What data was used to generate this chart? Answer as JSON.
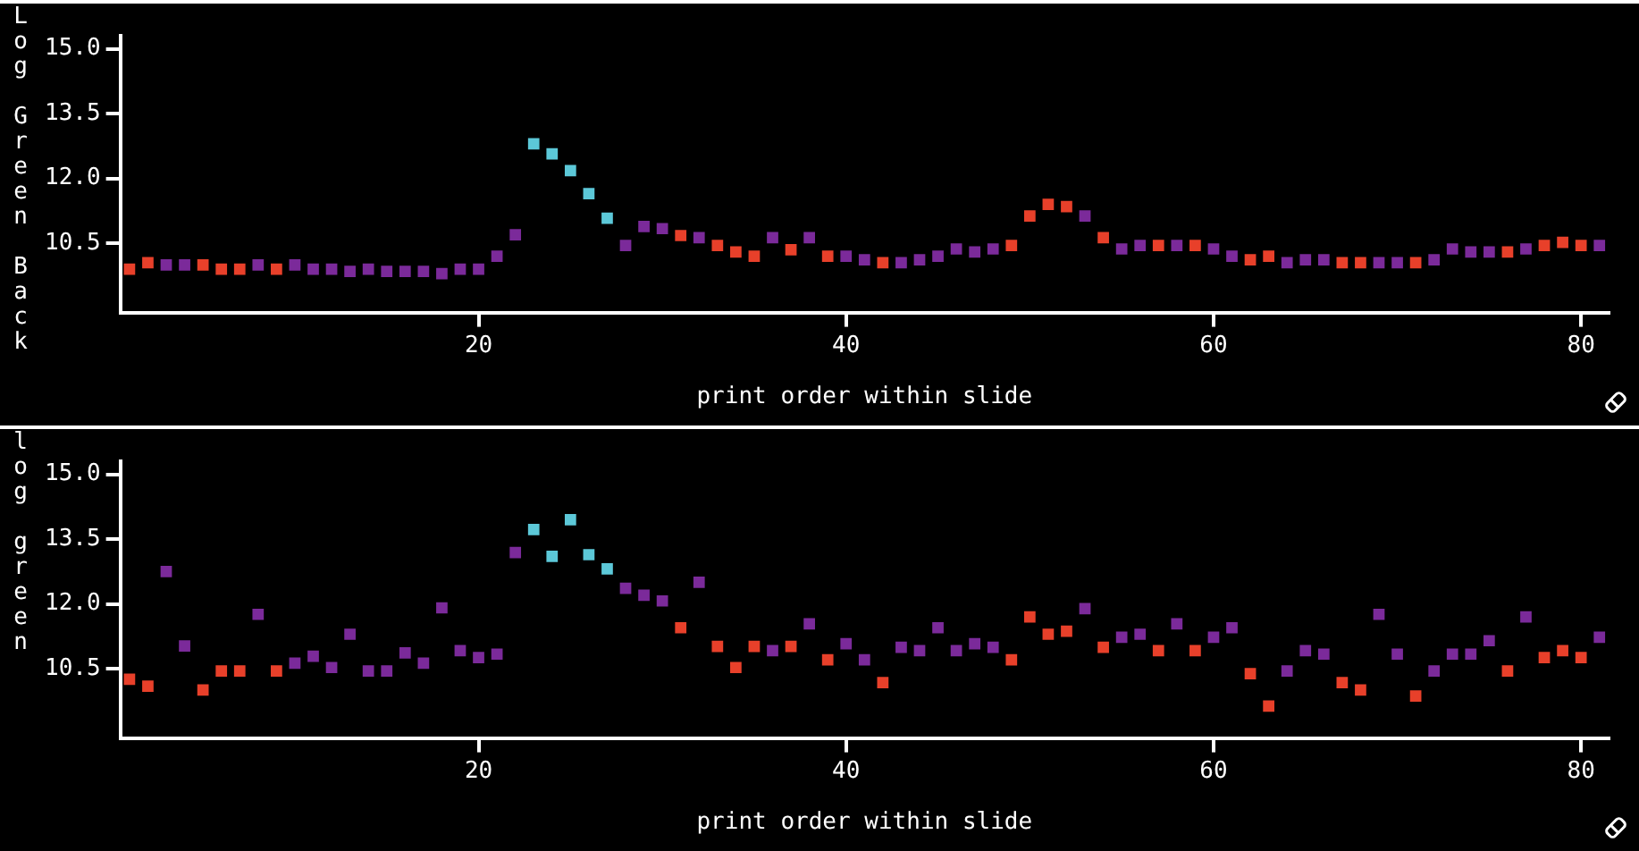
{
  "chart_data": [
    {
      "type": "scatter",
      "xlabel": "print order within slide",
      "ylabel": "Log Green Back",
      "xlim": [
        0.5,
        81.5
      ],
      "ylim": [
        8.9,
        15.3
      ],
      "xticks": [
        20,
        40,
        60,
        80
      ],
      "yticks": [
        {
          "value": 10.5,
          "label": "10.5"
        },
        {
          "value": 12,
          "label": "12.0"
        },
        {
          "value": 13.5,
          "label": "13.5"
        },
        {
          "value": 15,
          "label": "15.0"
        }
      ],
      "marker": "square",
      "grid": false,
      "legend": false,
      "series": [
        {
          "color": "#e8402a",
          "x": [
            1,
            2,
            5,
            6,
            7,
            9,
            31,
            33,
            34,
            35,
            37,
            39,
            42,
            49,
            50,
            51,
            52,
            54,
            57,
            59,
            62,
            63,
            67,
            68,
            71,
            76,
            78,
            79,
            80
          ],
          "values": [
            9.9,
            10.05,
            10.0,
            9.9,
            9.9,
            9.9,
            10.68,
            10.45,
            10.3,
            10.2,
            10.35,
            10.2,
            10.05,
            10.45,
            11.13,
            11.4,
            11.35,
            10.63,
            10.45,
            10.45,
            10.12,
            10.2,
            10.05,
            10.05,
            10.05,
            10.3,
            10.45,
            10.52,
            10.45
          ]
        },
        {
          "color": "#7b2a9a",
          "x": [
            3,
            4,
            8,
            10,
            11,
            12,
            13,
            14,
            15,
            16,
            17,
            18,
            19,
            20,
            21,
            22,
            28,
            29,
            30,
            32,
            36,
            38,
            40,
            41,
            43,
            44,
            45,
            46,
            47,
            48,
            53,
            55,
            56,
            58,
            60,
            61,
            64,
            65,
            66,
            69,
            70,
            72,
            73,
            74,
            75,
            77,
            81
          ],
          "values": [
            10.0,
            10.0,
            10.0,
            10.0,
            9.9,
            9.9,
            9.85,
            9.9,
            9.85,
            9.85,
            9.85,
            9.8,
            9.9,
            9.9,
            10.2,
            10.7,
            10.45,
            10.89,
            10.84,
            10.63,
            10.63,
            10.63,
            10.2,
            10.12,
            10.05,
            10.12,
            10.2,
            10.37,
            10.3,
            10.37,
            11.13,
            10.37,
            10.45,
            10.45,
            10.37,
            10.2,
            10.05,
            10.12,
            10.12,
            10.05,
            10.05,
            10.12,
            10.37,
            10.3,
            10.3,
            10.37,
            10.45
          ]
        },
        {
          "color": "#5cc8d8",
          "x": [
            23,
            24,
            25,
            26,
            27
          ],
          "values": [
            12.8,
            12.57,
            12.18,
            11.65,
            11.08
          ]
        }
      ]
    },
    {
      "type": "scatter",
      "xlabel": "print order within slide",
      "ylabel": "log green",
      "xlim": [
        0.5,
        81.5
      ],
      "ylim": [
        8.9,
        15.3
      ],
      "xticks": [
        20,
        40,
        60,
        80
      ],
      "yticks": [
        {
          "value": 10.5,
          "label": "10.5"
        },
        {
          "value": 12,
          "label": "12.0"
        },
        {
          "value": 13.5,
          "label": "13.5"
        },
        {
          "value": 15,
          "label": "15.0"
        }
      ],
      "marker": "square",
      "grid": false,
      "legend": false,
      "series": [
        {
          "color": "#e8402a",
          "x": [
            1,
            2,
            5,
            6,
            7,
            9,
            31,
            33,
            34,
            35,
            37,
            39,
            42,
            49,
            50,
            51,
            52,
            54,
            57,
            59,
            62,
            63,
            67,
            68,
            71,
            76,
            78,
            79,
            80
          ],
          "values": [
            10.26,
            10.1,
            10.01,
            10.45,
            10.45,
            10.45,
            11.45,
            11.02,
            10.53,
            11.02,
            11.02,
            10.71,
            10.18,
            10.71,
            11.7,
            11.3,
            11.37,
            11.0,
            10.92,
            10.92,
            10.39,
            9.64,
            10.18,
            10.01,
            9.87,
            10.45,
            10.76,
            10.92,
            10.76
          ]
        },
        {
          "color": "#7b2a9a",
          "x": [
            3,
            4,
            8,
            10,
            11,
            12,
            13,
            14,
            15,
            16,
            17,
            18,
            19,
            20,
            21,
            22,
            28,
            29,
            30,
            32,
            36,
            38,
            40,
            41,
            43,
            44,
            45,
            46,
            47,
            48,
            53,
            55,
            56,
            58,
            60,
            61,
            64,
            65,
            66,
            69,
            70,
            72,
            73,
            74,
            75,
            77,
            81
          ],
          "values": [
            12.75,
            11.03,
            11.76,
            10.63,
            10.79,
            10.53,
            11.3,
            10.45,
            10.45,
            10.87,
            10.63,
            11.91,
            10.92,
            10.76,
            10.84,
            13.19,
            12.36,
            12.2,
            12.07,
            12.5,
            10.92,
            11.54,
            11.08,
            10.71,
            11.0,
            10.92,
            11.45,
            10.92,
            11.08,
            11.0,
            11.89,
            11.23,
            11.3,
            11.54,
            11.23,
            11.45,
            10.45,
            10.92,
            10.84,
            11.76,
            10.84,
            10.45,
            10.84,
            10.84,
            11.15,
            11.7,
            11.23
          ]
        },
        {
          "color": "#5cc8d8",
          "x": [
            23,
            24,
            25,
            26,
            27
          ],
          "values": [
            13.72,
            13.1,
            13.95,
            13.14,
            12.81
          ]
        }
      ]
    }
  ]
}
